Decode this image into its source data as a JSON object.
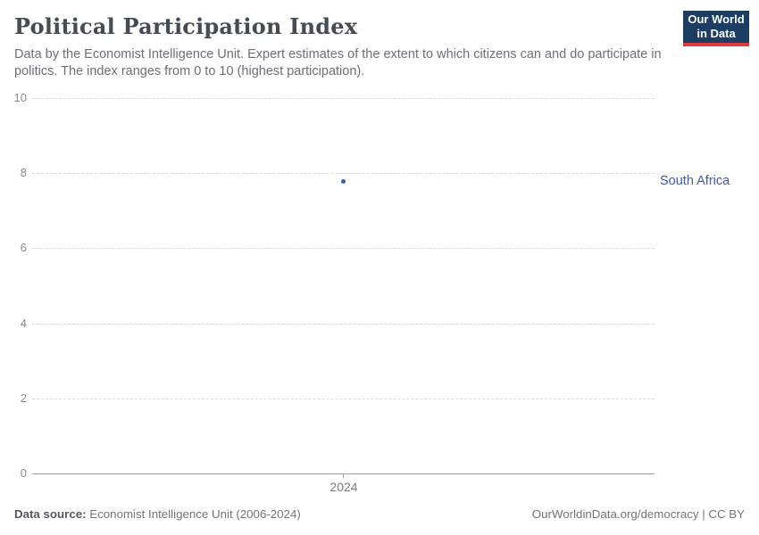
{
  "header": {
    "title": "Political Participation Index",
    "subtitle": "Data by the Economist Intelligence Unit. Expert estimates of the extent to which citizens can and do participate in politics. The index ranges from 0 to 10 (highest participation).",
    "logo": {
      "line1": "Our World",
      "line2": "in Data",
      "bg": "#1d3d63",
      "accent": "#e0393e"
    }
  },
  "chart_data": {
    "type": "scatter",
    "title": "Political Participation Index",
    "series": [
      {
        "name": "South Africa",
        "x": [
          2024
        ],
        "values": [
          7.78
        ],
        "color": "#3f5e9e"
      }
    ],
    "categories": [
      "2024"
    ],
    "xlabel": "",
    "ylabel": "",
    "ylim": [
      0,
      10
    ],
    "yticks": [
      0,
      2,
      4,
      6,
      8,
      10
    ],
    "grid": "horizontal-dashed",
    "legend_position": "right-of-point",
    "entity_label": "South Africa"
  },
  "axes": {
    "y_ticks": [
      "10",
      "8",
      "6",
      "4",
      "2",
      "0"
    ],
    "x_tick": "2024"
  },
  "footer": {
    "source_label": "Data source:",
    "source_value": " Economist Intelligence Unit (2006-2024)",
    "rights": "OurWorldinData.org/democracy | CC BY"
  }
}
